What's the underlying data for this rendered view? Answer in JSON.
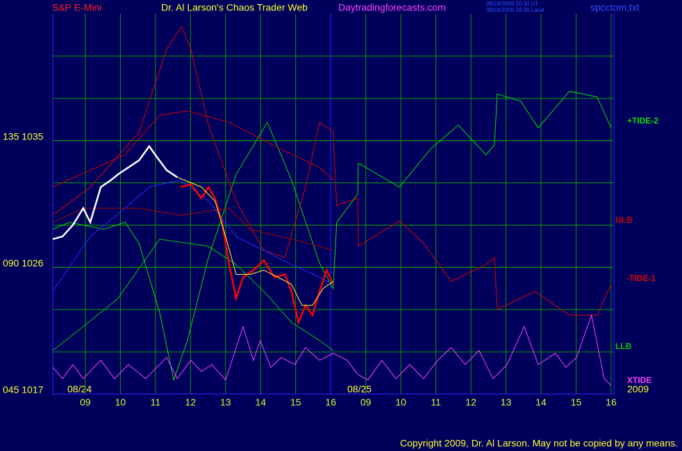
{
  "chart_data": {
    "type": "line",
    "symbol": "S&P E-Mini",
    "title": "Dr. Al Larson's Chaos Trader Web",
    "website": "Daytradingforecasts.com",
    "timestamps": [
      "08/24/2009 20:30 UT",
      "08/24/2009 16:30 Local"
    ],
    "file": "spcctom.txt",
    "copyright": "Copyright 2009, Dr. Al Larson. May not be copied by any means.",
    "annotations": [
      "08/24",
      "08/25",
      "2009"
    ],
    "xlim": [
      0.07,
      16.08
    ],
    "ylim": [
      1017,
      1044
    ],
    "xticks": [
      {
        "value": 1,
        "label": "09"
      },
      {
        "value": 2,
        "label": "10"
      },
      {
        "value": 3,
        "label": "11"
      },
      {
        "value": 4,
        "label": "12"
      },
      {
        "value": 5,
        "label": "13"
      },
      {
        "value": 6,
        "label": "14"
      },
      {
        "value": 7,
        "label": "15"
      },
      {
        "value": 8,
        "label": "16"
      },
      {
        "value": 9,
        "label": "09"
      },
      {
        "value": 10,
        "label": "10"
      },
      {
        "value": 11,
        "label": "11"
      },
      {
        "value": 12,
        "label": "12"
      },
      {
        "value": 13,
        "label": "13"
      },
      {
        "value": 14,
        "label": "14"
      },
      {
        "value": 15,
        "label": "15"
      },
      {
        "value": 16,
        "label": "16"
      }
    ],
    "yticks": [
      {
        "value": 1017,
        "label": "045 1017"
      },
      {
        "value": 1026,
        "label": "090 1026"
      },
      {
        "value": 1035,
        "label": "135 1035"
      }
    ],
    "ygrid": [
      1020,
      1023,
      1026,
      1029,
      1032,
      1035,
      1038,
      1041
    ],
    "grid": true,
    "series": [
      {
        "name": "+TIDE-2",
        "color": "#00e000",
        "x": [
          0.07,
          0.54,
          1.53,
          2.13,
          2.53,
          3.12,
          3.52,
          3.91,
          4.51,
          5.3,
          6.19,
          6.88,
          7.68,
          8.07,
          8.17,
          8.77,
          8.79,
          9.96,
          10.85,
          11.64,
          12.43,
          12.67,
          12.75,
          13.42,
          13.92,
          14.81,
          15.6,
          16
        ],
        "values": [
          1028.7,
          1029.2,
          1028.7,
          1029.2,
          1027.7,
          1022.8,
          1018.0,
          1020.8,
          1026.7,
          1032.6,
          1036.3,
          1032.2,
          1026.3,
          1024.5,
          1029.2,
          1031.2,
          1033.4,
          1031.7,
          1034.4,
          1036.1,
          1034.0,
          1034.7,
          1038.3,
          1037.8,
          1035.9,
          1038.5,
          1038.1,
          1035.9
        ]
      },
      {
        "name": "ULB",
        "color": "#d00000",
        "x": [
          0.07,
          1.14,
          2.13,
          3.12,
          3.91,
          5.1,
          6.49,
          7.68,
          8.07
        ],
        "values": [
          1031.7,
          1032.9,
          1034.0,
          1036.8,
          1037.1,
          1036.3,
          1034.5,
          1033.1,
          1032.2
        ]
      },
      {
        "name": "-TIDE-1",
        "color": "#e00000",
        "x": [
          0.07,
          1.14,
          2.53,
          3.32,
          3.75,
          4.01,
          4.51,
          5.3,
          6.09,
          6.69,
          7.28,
          7.68,
          8.07,
          8.17,
          8.77,
          8.79,
          9.96,
          10.65,
          11.44,
          12.43,
          12.67,
          12.75,
          13.82,
          14.81,
          15.6,
          16
        ],
        "values": [
          1029.7,
          1031.7,
          1035.6,
          1041.5,
          1043.1,
          1041.5,
          1036.1,
          1030.7,
          1027.2,
          1026.7,
          1031.7,
          1036.3,
          1035.6,
          1030.4,
          1030.9,
          1027.5,
          1029.3,
          1027.7,
          1025.0,
          1026.2,
          1026.7,
          1023.0,
          1024.3,
          1022.6,
          1022.6,
          1024.8
        ]
      },
      {
        "name": "LLB",
        "color": "#00c800",
        "x": [
          0.07,
          0.94,
          1.93,
          3.12,
          4.51,
          5.3,
          6.09,
          6.88,
          7.68,
          8.07
        ],
        "values": [
          1020.1,
          1021.8,
          1023.8,
          1028.0,
          1027.5,
          1026.2,
          1024.3,
          1022.1,
          1020.8,
          1020.1
        ]
      },
      {
        "color": "#b00000",
        "x": [
          0.07,
          0.94,
          2.53,
          3.71,
          5.1,
          5.7,
          6.88,
          7.68,
          8.07
        ],
        "values": [
          1029.2,
          1030.2,
          1030.2,
          1029.7,
          1030.2,
          1028.7,
          1028.0,
          1027.5,
          1027.2
        ]
      },
      {
        "color": "#2828ff",
        "x": [
          0.07,
          1.14,
          2.13,
          2.82,
          3.71,
          4.51,
          5.3,
          6.09,
          6.88,
          7.68,
          8.07
        ],
        "values": [
          1024.3,
          1028.2,
          1030.2,
          1031.7,
          1032.2,
          1030.7,
          1028.2,
          1027.2,
          1026.2,
          1025.3,
          1024.8
        ]
      },
      {
        "color": "#ffffff",
        "x": [
          0.07,
          0.35,
          0.64,
          0.94,
          1.14,
          1.44,
          1.73,
          1.93,
          2.23,
          2.53,
          2.82,
          3.02,
          3.32,
          3.62
        ],
        "values": [
          1028.0,
          1028.2,
          1029.0,
          1030.2,
          1029.2,
          1031.7,
          1032.2,
          1032.6,
          1033.1,
          1033.6,
          1034.6,
          1033.9,
          1032.9,
          1032.4
        ]
      },
      {
        "color": "#ff0000",
        "x": [
          3.71,
          4.01,
          4.31,
          4.51,
          4.7,
          4.9,
          5.1,
          5.3,
          5.5,
          5.79,
          6.09,
          6.39,
          6.69,
          6.88,
          7.08,
          7.28,
          7.48,
          7.68,
          7.88,
          8.07
        ],
        "values": [
          1031.7,
          1031.9,
          1030.9,
          1031.7,
          1030.9,
          1029.2,
          1026.2,
          1023.8,
          1025.3,
          1025.8,
          1026.5,
          1025.3,
          1025.5,
          1024.3,
          1022.1,
          1023.3,
          1022.6,
          1024.3,
          1025.8,
          1024.8
        ]
      },
      {
        "color": "#ffff40",
        "x": [
          3.62,
          4.31,
          4.7,
          5.0,
          5.3,
          5.7,
          6.09,
          6.49,
          6.88,
          7.18,
          7.48,
          7.78,
          8.07
        ],
        "values": [
          1032.4,
          1031.7,
          1030.7,
          1028.2,
          1025.5,
          1025.5,
          1025.8,
          1025.3,
          1024.8,
          1023.3,
          1023.3,
          1024.5,
          1025.0
        ]
      },
      {
        "name": "XTIDE",
        "color": "#ff40ff",
        "x": [
          0.07,
          0.35,
          0.64,
          0.94,
          1.44,
          1.83,
          2.23,
          2.72,
          3.32,
          3.62,
          4.01,
          4.31,
          4.61,
          5.0,
          5.5,
          5.79,
          5.99,
          6.29,
          6.59,
          6.98,
          7.28,
          7.68,
          8.07,
          8.47,
          8.77,
          9.06,
          9.46,
          9.86,
          10.25,
          10.65,
          11.05,
          11.44,
          11.84,
          12.23,
          12.63,
          13.03,
          13.52,
          13.92,
          14.41,
          14.71,
          15.01,
          15.44,
          15.8,
          16
        ],
        "values": [
          1018.9,
          1018.1,
          1019.1,
          1018.1,
          1019.4,
          1018.1,
          1019.1,
          1018.1,
          1019.6,
          1018.1,
          1019.4,
          1018.6,
          1019.1,
          1018.0,
          1021.8,
          1019.4,
          1020.8,
          1018.9,
          1019.6,
          1019.1,
          1020.3,
          1019.4,
          1019.9,
          1019.4,
          1018.4,
          1018.0,
          1019.4,
          1018.1,
          1019.1,
          1018.1,
          1019.4,
          1020.3,
          1019.1,
          1020.1,
          1018.1,
          1019.1,
          1021.8,
          1019.1,
          1019.9,
          1018.9,
          1019.6,
          1022.6,
          1018.1,
          1017.6
        ]
      }
    ]
  }
}
